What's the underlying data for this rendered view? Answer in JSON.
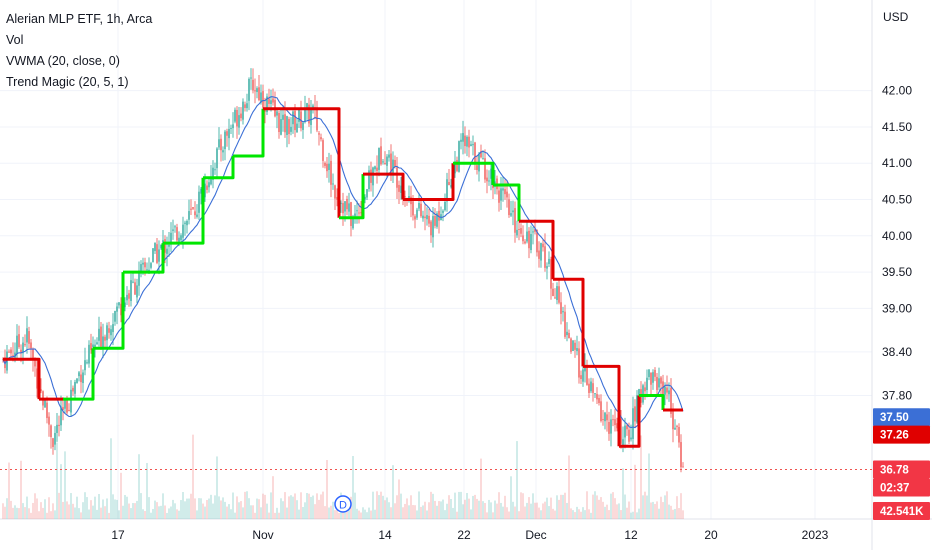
{
  "legend": {
    "symbol": "Alerian MLP ETF, 1h, Arca",
    "volume": "Vol",
    "vwma": "VWMA (20, close, 0)",
    "trend_magic": "Trend Magic (20, 5, 1)"
  },
  "currency_label": "USD",
  "dividend_marker": "D",
  "colors": {
    "up": "#26a69a",
    "down": "#ef5350",
    "vwma": "#3b6fd6",
    "trend_up": "#00e600",
    "trend_down": "#e00000",
    "grid": "#f0f3fa",
    "price_line": "#ef5350"
  },
  "badges": [
    {
      "label": "37.50",
      "color": "#3b6fd6"
    },
    {
      "label": "37.26",
      "color": "#e00000"
    },
    {
      "label": "36.78",
      "color": "#f23645"
    },
    {
      "label": "02:37",
      "color": "#f23645"
    },
    {
      "label": "42.541K",
      "color": "#f23645"
    }
  ],
  "chart_data": {
    "type": "candlestick",
    "y_ticks": [
      42.0,
      41.5,
      41.0,
      40.5,
      40.0,
      39.5,
      39.0,
      38.4,
      37.8
    ],
    "y_tick_labels": [
      "42.00",
      "41.50",
      "41.00",
      "40.50",
      "40.00",
      "39.50",
      "39.00",
      "38.40",
      "37.80"
    ],
    "x_labels": [
      "17",
      "Nov",
      "14",
      "22",
      "Dec",
      "12",
      "20",
      "2023"
    ],
    "ylim": [
      36.6,
      42.45
    ],
    "grid": true,
    "last_price": 36.78,
    "vwma_last": 37.5,
    "trend_magic_last": 37.26,
    "volume_last": "42.541K",
    "close_path": [
      {
        "bar": 0,
        "price": 38.3
      },
      {
        "bar": 12,
        "price": 38.6
      },
      {
        "bar": 25,
        "price": 37.2
      },
      {
        "bar": 38,
        "price": 38.1
      },
      {
        "bar": 55,
        "price": 38.9
      },
      {
        "bar": 75,
        "price": 39.7
      },
      {
        "bar": 95,
        "price": 40.3
      },
      {
        "bar": 110,
        "price": 41.3
      },
      {
        "bar": 125,
        "price": 42.1
      },
      {
        "bar": 140,
        "price": 41.5
      },
      {
        "bar": 155,
        "price": 41.7
      },
      {
        "bar": 165,
        "price": 40.7
      },
      {
        "bar": 175,
        "price": 40.2
      },
      {
        "bar": 190,
        "price": 41.2
      },
      {
        "bar": 205,
        "price": 40.4
      },
      {
        "bar": 215,
        "price": 40.1
      },
      {
        "bar": 230,
        "price": 41.3
      },
      {
        "bar": 245,
        "price": 40.8
      },
      {
        "bar": 255,
        "price": 40.2
      },
      {
        "bar": 270,
        "price": 39.8
      },
      {
        "bar": 285,
        "price": 38.4
      },
      {
        "bar": 300,
        "price": 37.5
      },
      {
        "bar": 312,
        "price": 37.2
      },
      {
        "bar": 322,
        "price": 38.1
      },
      {
        "bar": 332,
        "price": 37.9
      },
      {
        "bar": 340,
        "price": 36.8
      }
    ],
    "trend_magic_steps": [
      {
        "from": 0,
        "to": 18,
        "value": 38.3,
        "trend": "down"
      },
      {
        "from": 18,
        "to": 30,
        "value": 37.75,
        "trend": "down"
      },
      {
        "from": 30,
        "to": 45,
        "value": 37.75,
        "trend": "up"
      },
      {
        "from": 45,
        "to": 60,
        "value": 38.45,
        "trend": "up"
      },
      {
        "from": 60,
        "to": 80,
        "value": 39.5,
        "trend": "up"
      },
      {
        "from": 80,
        "to": 100,
        "value": 39.9,
        "trend": "up"
      },
      {
        "from": 100,
        "to": 115,
        "value": 40.8,
        "trend": "up"
      },
      {
        "from": 115,
        "to": 130,
        "value": 41.1,
        "trend": "up"
      },
      {
        "from": 130,
        "to": 168,
        "value": 41.75,
        "trend": "down"
      },
      {
        "from": 168,
        "to": 180,
        "value": 40.25,
        "trend": "up"
      },
      {
        "from": 180,
        "to": 200,
        "value": 40.85,
        "trend": "down"
      },
      {
        "from": 200,
        "to": 225,
        "value": 40.5,
        "trend": "down"
      },
      {
        "from": 225,
        "to": 245,
        "value": 41.0,
        "trend": "up"
      },
      {
        "from": 245,
        "to": 258,
        "value": 40.7,
        "trend": "up"
      },
      {
        "from": 258,
        "to": 275,
        "value": 40.2,
        "trend": "down"
      },
      {
        "from": 275,
        "to": 290,
        "value": 39.4,
        "trend": "down"
      },
      {
        "from": 290,
        "to": 308,
        "value": 38.2,
        "trend": "down"
      },
      {
        "from": 308,
        "to": 318,
        "value": 37.1,
        "trend": "down"
      },
      {
        "from": 318,
        "to": 330,
        "value": 37.8,
        "trend": "up"
      },
      {
        "from": 330,
        "to": 340,
        "value": 37.6,
        "trend": "down"
      }
    ]
  }
}
